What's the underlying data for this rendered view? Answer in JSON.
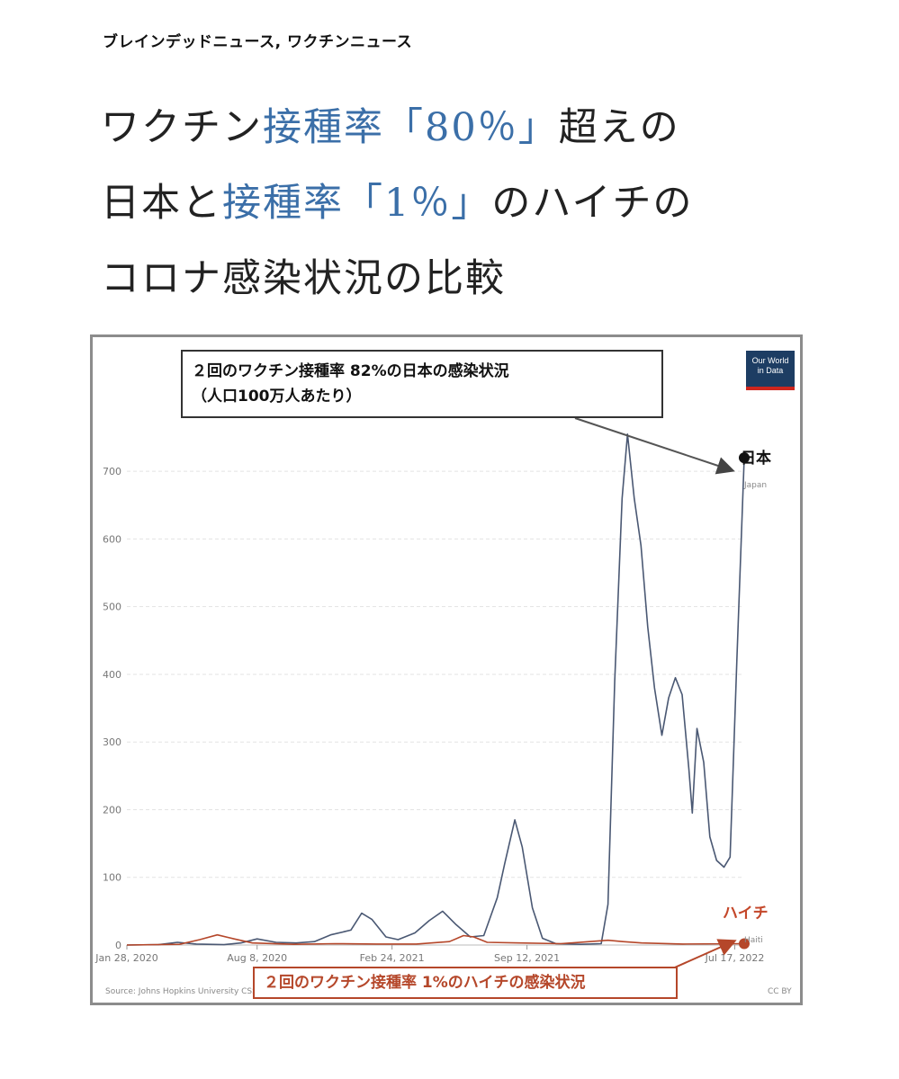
{
  "category": "ブレインデッドニュース, ワクチンニュース",
  "headline": {
    "line1": [
      {
        "text": "ワクチン",
        "accent": false
      },
      {
        "text": "接種率「80％」",
        "accent": true
      },
      {
        "text": "超えの",
        "accent": false
      }
    ],
    "line2": [
      {
        "text": "日本と",
        "accent": false
      },
      {
        "text": "接種率「1％」",
        "accent": true
      },
      {
        "text": "のハイチの",
        "accent": false
      }
    ],
    "line3": [
      {
        "text": "コロナ感染状況の比較",
        "accent": false
      }
    ]
  },
  "colors": {
    "accent_text": "#3b6fa8",
    "japan_line": "#4a5873",
    "haiti_line": "#b5472a",
    "owid_logo_bg": "#1d3d63",
    "owid_logo_bar": "#ce261e"
  },
  "chart": {
    "logo_line1": "Our World",
    "logo_line2": "in Data",
    "callout_japan_line1": "２回のワクチン接種率 82%の日本の感染状況",
    "callout_japan_line2": "（人口100万人あたり）",
    "callout_haiti": "２回のワクチン接種率 1%のハイチの感染状況",
    "label_japan": "日本",
    "label_haiti": "ハイチ",
    "series_tag_japan": "Japan",
    "series_tag_haiti": "Haiti",
    "source": "Source: Johns Hopkins University CSSE C",
    "license": "CC BY"
  },
  "chart_data": {
    "type": "line",
    "ylim": [
      0,
      760
    ],
    "yticks": [
      0,
      100,
      200,
      300,
      400,
      500,
      600,
      700
    ],
    "xrange": [
      "2020-01-28",
      "2022-07-31"
    ],
    "xtick_labels": [
      "Jan 28, 2020",
      "Aug 8, 2020",
      "Feb 24, 2021",
      "Sep 12, 2021",
      "Jul 17, 2022"
    ],
    "xtick_dates": [
      "2020-01-28",
      "2020-08-08",
      "2021-02-24",
      "2021-09-12",
      "2022-07-17"
    ],
    "grid": "horizontal",
    "series": [
      {
        "name": "Japan",
        "points": [
          [
            "2020-01-28",
            0
          ],
          [
            "2020-03-15",
            0.5
          ],
          [
            "2020-04-12",
            4
          ],
          [
            "2020-05-10",
            1.5
          ],
          [
            "2020-06-20",
            0.5
          ],
          [
            "2020-07-15",
            3
          ],
          [
            "2020-08-08",
            9
          ],
          [
            "2020-09-05",
            4
          ],
          [
            "2020-10-05",
            3
          ],
          [
            "2020-11-01",
            5
          ],
          [
            "2020-11-25",
            15
          ],
          [
            "2020-12-25",
            22
          ],
          [
            "2021-01-10",
            47
          ],
          [
            "2021-01-25",
            38
          ],
          [
            "2021-02-15",
            12
          ],
          [
            "2021-03-05",
            8
          ],
          [
            "2021-03-30",
            18
          ],
          [
            "2021-04-20",
            36
          ],
          [
            "2021-05-10",
            50
          ],
          [
            "2021-05-30",
            30
          ],
          [
            "2021-06-20",
            12
          ],
          [
            "2021-07-10",
            14
          ],
          [
            "2021-07-30",
            70
          ],
          [
            "2021-08-10",
            120
          ],
          [
            "2021-08-25",
            185
          ],
          [
            "2021-09-05",
            145
          ],
          [
            "2021-09-20",
            55
          ],
          [
            "2021-10-05",
            10
          ],
          [
            "2021-10-25",
            2
          ],
          [
            "2021-12-01",
            1
          ],
          [
            "2021-12-31",
            2
          ],
          [
            "2022-01-10",
            60
          ],
          [
            "2022-01-20",
            390
          ],
          [
            "2022-01-31",
            660
          ],
          [
            "2022-02-08",
            755
          ],
          [
            "2022-02-18",
            660
          ],
          [
            "2022-02-28",
            590
          ],
          [
            "2022-03-10",
            470
          ],
          [
            "2022-03-20",
            380
          ],
          [
            "2022-03-31",
            310
          ],
          [
            "2022-04-10",
            365
          ],
          [
            "2022-04-20",
            395
          ],
          [
            "2022-04-30",
            370
          ],
          [
            "2022-05-10",
            260
          ],
          [
            "2022-05-15",
            195
          ],
          [
            "2022-05-22",
            320
          ],
          [
            "2022-06-01",
            270
          ],
          [
            "2022-06-10",
            160
          ],
          [
            "2022-06-20",
            125
          ],
          [
            "2022-07-01",
            115
          ],
          [
            "2022-07-10",
            130
          ],
          [
            "2022-07-20",
            420
          ],
          [
            "2022-07-31",
            720
          ]
        ]
      },
      {
        "name": "Haiti",
        "points": [
          [
            "2020-01-28",
            0
          ],
          [
            "2020-04-15",
            1
          ],
          [
            "2020-05-15",
            8
          ],
          [
            "2020-06-10",
            15
          ],
          [
            "2020-07-05",
            9
          ],
          [
            "2020-08-01",
            3
          ],
          [
            "2020-10-01",
            1
          ],
          [
            "2020-12-01",
            2
          ],
          [
            "2021-02-01",
            1.5
          ],
          [
            "2021-04-01",
            1.5
          ],
          [
            "2021-05-20",
            5
          ],
          [
            "2021-06-10",
            14
          ],
          [
            "2021-06-25",
            12
          ],
          [
            "2021-07-15",
            4
          ],
          [
            "2021-09-01",
            3
          ],
          [
            "2021-11-01",
            2
          ],
          [
            "2022-01-10",
            7
          ],
          [
            "2022-02-01",
            5
          ],
          [
            "2022-03-01",
            3
          ],
          [
            "2022-05-01",
            1.5
          ],
          [
            "2022-07-31",
            2
          ]
        ]
      }
    ]
  }
}
